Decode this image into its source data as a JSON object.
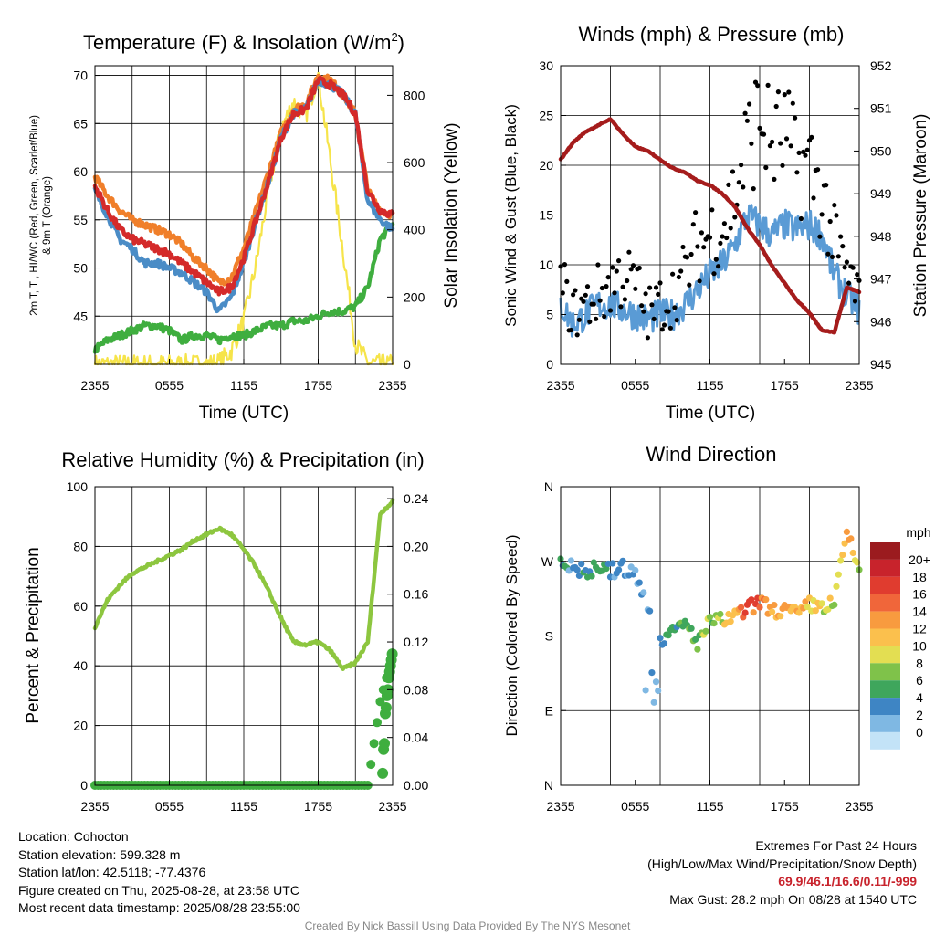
{
  "panels": {
    "temp": {
      "title": "Temperature (F) & Insolation (W/m",
      "title_sup": "2",
      "title_end": ")",
      "ylabel_left_line1": "2m T, T , HI/WC (Red, Green, Scarlet/Blue)",
      "ylabel_left_line2": "& 9m T (Orange)",
      "ylabel_right": "Solar Insolation (Yellow)",
      "xlabel": "Time (UTC)"
    },
    "wind": {
      "title": "Winds (mph) & Pressure (mb)",
      "ylabel_left": "Sonic Wind & Gust (Blue, Black)",
      "ylabel_right": "Station Pressure (Maroon)",
      "xlabel": "Time (UTC)"
    },
    "rh": {
      "title": "Relative Humidity (%) & Precipitation (in)",
      "ylabel_left": "Percent & Precipitation"
    },
    "dir": {
      "title": "Wind Direction",
      "ylabel_left": "Direction (Colored By Speed)",
      "legend_title": "mph"
    }
  },
  "x_tick_labels": [
    "2355",
    "0555",
    "1155",
    "1755",
    "2355"
  ],
  "chart_data": [
    {
      "type": "line",
      "title": "Temperature (F) & Insolation (W/m2)",
      "xlabel": "Time (UTC)",
      "x": [
        0,
        1,
        2,
        3,
        4,
        5,
        6,
        7,
        8,
        9,
        10,
        11,
        12,
        13,
        14,
        15,
        16,
        17,
        18,
        19,
        20,
        21,
        22,
        23,
        24
      ],
      "ylim": [
        40,
        71
      ],
      "y_ticks": [
        45,
        50,
        55,
        60,
        65,
        70
      ],
      "y2lim": [
        0,
        888
      ],
      "y2_ticks": [
        0,
        200,
        400,
        600,
        800
      ],
      "series": [
        {
          "name": "2m T (Red)",
          "color": "#d42a2a",
          "values": [
            58.5,
            56,
            54,
            53,
            52.5,
            52,
            51.5,
            50.5,
            49.5,
            48.5,
            47.5,
            48,
            51,
            55,
            59,
            63.5,
            66,
            66.5,
            69.5,
            69,
            68,
            66,
            58,
            56,
            55.5
          ]
        },
        {
          "name": "9m T (Orange)",
          "color": "#f07f2a",
          "values": [
            59.5,
            57.5,
            56,
            55,
            54.5,
            54,
            53.5,
            52.5,
            51,
            50,
            48.5,
            49,
            52,
            56,
            60,
            64,
            66.5,
            67,
            70,
            69.5,
            68,
            66,
            58,
            56,
            55.5
          ]
        },
        {
          "name": "HI/WC (Scarlet/Blue)",
          "color": "#4a8cc6",
          "values": [
            58,
            55.5,
            53,
            52,
            50.5,
            50.5,
            50,
            49.5,
            48.5,
            47.5,
            45.5,
            47,
            50.5,
            55,
            59,
            63.5,
            66,
            66.5,
            69.5,
            69,
            68,
            66,
            57,
            55,
            54
          ]
        },
        {
          "name": "Td (Green)",
          "color": "#3fae3f",
          "values": [
            41.5,
            42.5,
            43,
            43.5,
            44,
            44,
            43.5,
            42.5,
            43,
            43,
            42.5,
            43,
            43,
            43.5,
            44,
            44,
            44.5,
            44.5,
            45,
            45.5,
            45.5,
            46,
            48,
            53,
            54.5
          ]
        },
        {
          "name": "Solar Insolation (Yellow)",
          "color": "#f6e44a",
          "axis": "right",
          "values": [
            0,
            0,
            0,
            0,
            0,
            0,
            0,
            0,
            0,
            0,
            5,
            40,
            130,
            300,
            520,
            700,
            780,
            740,
            860,
            600,
            340,
            60,
            5,
            0,
            0
          ]
        }
      ]
    },
    {
      "type": "line",
      "title": "Winds (mph) & Pressure (mb)",
      "xlabel": "Time (UTC)",
      "x": [
        0,
        1,
        2,
        3,
        4,
        5,
        6,
        7,
        8,
        9,
        10,
        11,
        12,
        13,
        14,
        15,
        16,
        17,
        18,
        19,
        20,
        21,
        22,
        23,
        24
      ],
      "ylim": [
        0,
        30
      ],
      "y_ticks": [
        0,
        5,
        10,
        15,
        20,
        25,
        30
      ],
      "y2lim": [
        945,
        952
      ],
      "y2_ticks": [
        945,
        946,
        947,
        948,
        949,
        950,
        951,
        952
      ],
      "series": [
        {
          "name": "Sonic Wind (Blue)",
          "color": "#5a9bd5",
          "values": [
            6,
            4,
            5,
            6,
            6,
            5.5,
            5,
            4.5,
            5,
            5,
            6,
            7.5,
            9,
            10,
            12,
            15,
            14,
            13,
            14,
            13.5,
            14,
            13,
            9,
            7,
            5.5
          ]
        },
        {
          "name": "Gust (Black)",
          "color": "#000000",
          "style": "dots",
          "values": [
            8,
            5,
            6,
            7,
            8,
            9,
            8,
            5,
            6,
            7,
            9,
            12,
            13,
            14,
            17,
            22,
            25,
            22,
            23,
            20,
            20,
            17,
            12,
            9,
            7
          ]
        },
        {
          "name": "Station Pressure (Maroon)",
          "color": "#a51c1c",
          "axis": "right",
          "values": [
            949.8,
            950.2,
            950.45,
            950.6,
            950.75,
            950.4,
            950.1,
            950.0,
            949.8,
            949.6,
            949.5,
            949.3,
            949.2,
            949.0,
            948.7,
            948.2,
            947.8,
            947.3,
            946.9,
            946.5,
            946.2,
            945.8,
            945.75,
            946.8,
            946.7
          ]
        }
      ]
    },
    {
      "type": "line",
      "title": "Relative Humidity (%) & Precipitation (in)",
      "x": [
        0,
        1,
        2,
        3,
        4,
        5,
        6,
        7,
        8,
        9,
        10,
        11,
        12,
        13,
        14,
        15,
        16,
        17,
        18,
        19,
        20,
        21,
        22,
        23,
        24
      ],
      "ylim": [
        0,
        100
      ],
      "y_ticks": [
        0,
        20,
        40,
        60,
        80,
        100
      ],
      "y2lim": [
        0,
        0.25
      ],
      "y2_ticks": [
        0,
        0.04,
        0.08,
        0.12,
        0.16,
        0.2,
        0.24
      ],
      "series": [
        {
          "name": "Relative Humidity (%)",
          "color": "#8dc63f",
          "values": [
            53,
            62,
            67,
            71,
            73,
            75,
            77,
            79,
            82,
            84,
            86,
            84,
            79,
            73,
            65,
            56,
            48,
            47,
            48,
            45,
            39,
            41,
            48,
            91,
            95
          ]
        },
        {
          "name": "Precipitation (in)",
          "color": "#3fae3f",
          "axis": "right",
          "style": "dots",
          "values": [
            0,
            0,
            0,
            0,
            0,
            0,
            0,
            0,
            0,
            0,
            0,
            0,
            0,
            0,
            0,
            0,
            0,
            0,
            0,
            0,
            0,
            0,
            0,
            0.07,
            0.11
          ]
        }
      ]
    },
    {
      "type": "scatter",
      "title": "Wind Direction",
      "ylabel": "Direction (Colored By Speed)",
      "x": [
        0,
        1,
        2,
        3,
        4,
        5,
        6,
        7,
        8,
        9,
        10,
        11,
        12,
        13,
        14,
        15,
        16,
        17,
        18,
        19,
        20,
        21,
        22,
        23,
        24
      ],
      "y_ticks": [
        "N",
        "E",
        "S",
        "W",
        "N"
      ],
      "y_tick_values": [
        0,
        90,
        180,
        270,
        360
      ],
      "series": [
        {
          "name": "Wind direction (deg)",
          "values": [
            272,
            262,
            258,
            262,
            258,
            262,
            253,
            215,
            175,
            183,
            195,
            172,
            197,
            198,
            203,
            212,
            222,
            210,
            212,
            205,
            218,
            215,
            220,
            305,
            258
          ]
        },
        {
          "name": "Wind speed (mph)",
          "values": [
            4,
            3,
            4,
            5,
            4,
            3,
            3,
            2,
            3,
            5,
            6,
            6,
            7,
            9,
            12,
            16,
            15,
            13,
            13,
            12,
            11,
            10,
            8,
            14,
            7
          ]
        }
      ],
      "legend_labels": [
        "20+",
        "18",
        "16",
        "14",
        "12",
        "10",
        "8",
        "6",
        "4",
        "2",
        "0"
      ],
      "legend_colors": [
        "#9b1b1f",
        "#c8232c",
        "#e03c2f",
        "#f0663a",
        "#f89b3f",
        "#fbc04d",
        "#e3de52",
        "#7fc24a",
        "#3fa65c",
        "#3e85c4",
        "#7fb8e3",
        "#c3e3f7"
      ]
    }
  ],
  "info": {
    "location": "Location: Cohocton",
    "elevation": "Station elevation: 599.328 m",
    "latlon": "Station lat/lon: 42.5118; -77.4376",
    "created": "Figure created on Thu, 2025-08-28, at 23:58 UTC",
    "recent": "Most recent data timestamp: 2025/08/28 23:55:00",
    "extremes_title": "Extremes For Past 24 Hours",
    "extremes_sub": "(High/Low/Max Wind/Precipitation/Snow Depth)",
    "extremes_values": "69.9/46.1/16.6/0.11/-999",
    "max_gust": "Max Gust: 28.2 mph On 08/28 at 1540 UTC",
    "credit": "Created By Nick Bassill Using Data Provided By The NYS Mesonet"
  }
}
